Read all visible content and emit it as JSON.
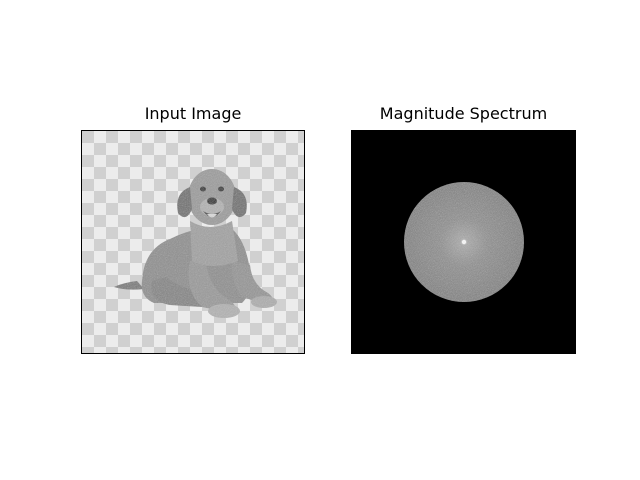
{
  "figure": {
    "panels": [
      {
        "id": "input",
        "title": "Input Image"
      },
      {
        "id": "spectrum",
        "title": "Magnitude Spectrum"
      }
    ]
  },
  "colors": {
    "background": "#ffffff",
    "checker_light": "#ececec",
    "checker_dark": "#d0d0d0",
    "spectrum_background": "#000000",
    "spectrum_disc": "#8a8a8a",
    "dog_fur": "#8d8d8d"
  }
}
